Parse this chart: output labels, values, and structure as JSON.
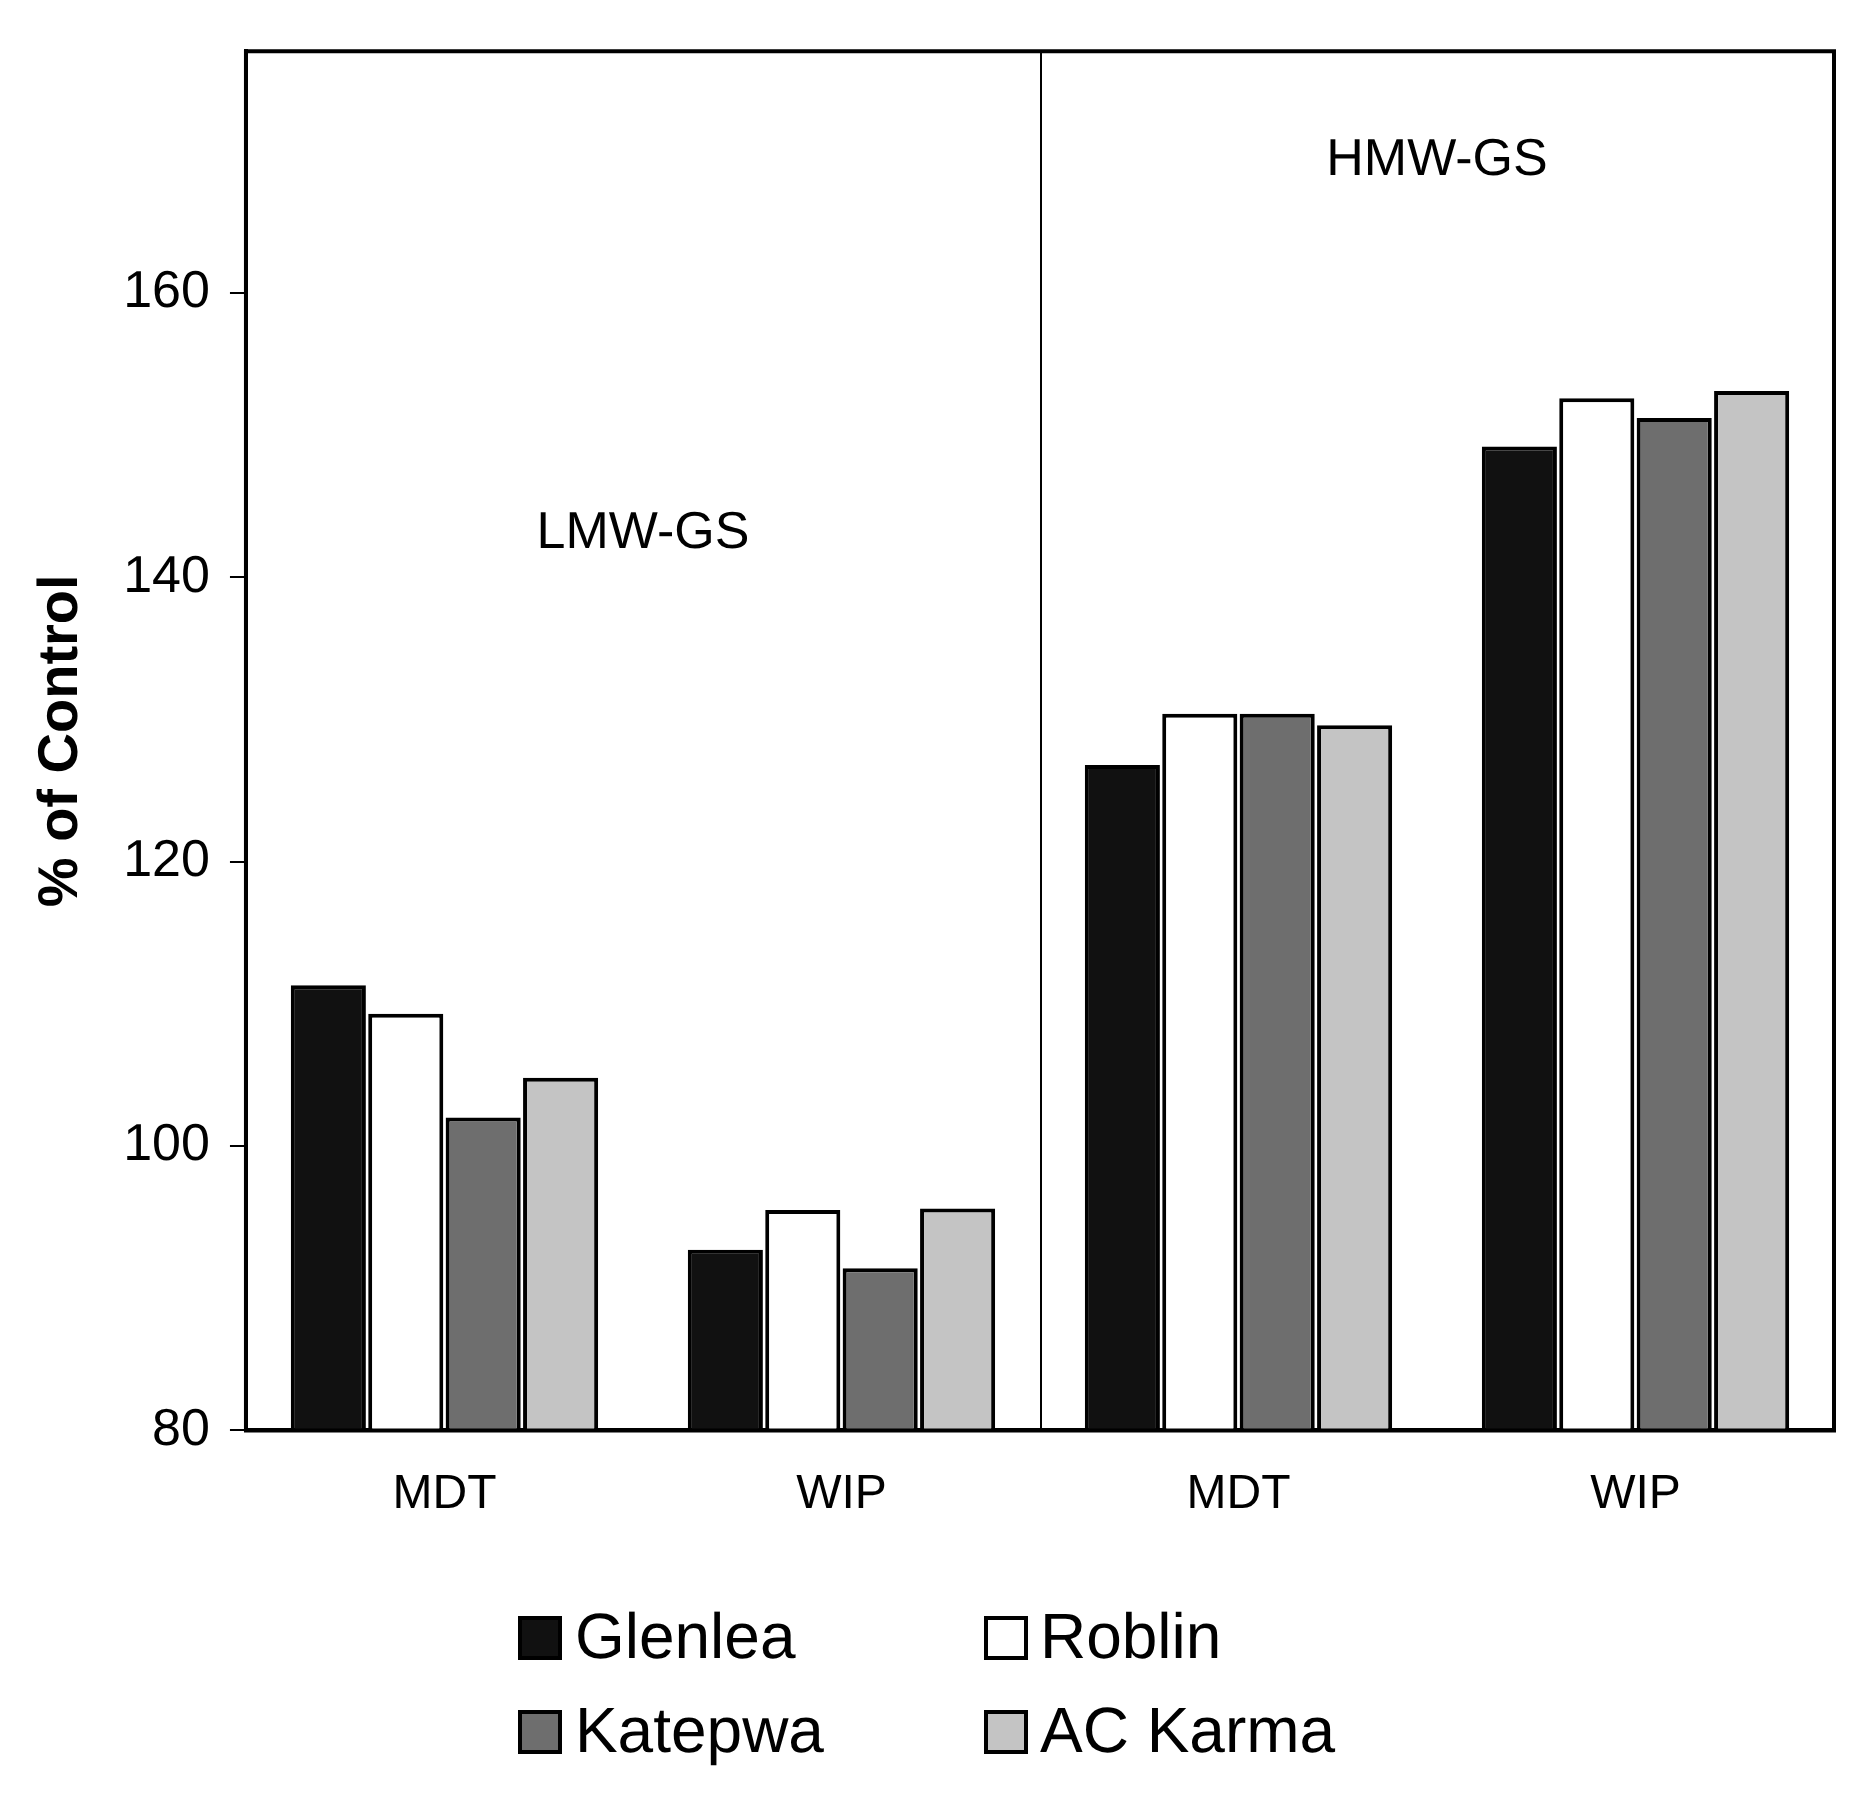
{
  "chart_data": {
    "type": "bar",
    "ylabel": "% of Control",
    "categories": [
      "MDT",
      "WIP",
      "MDT",
      "WIP"
    ],
    "series": [
      {
        "name": "Glenlea",
        "color": "#111111",
        "values": [
          111.3,
          92.7,
          126.8,
          149.2
        ]
      },
      {
        "name": "Roblin",
        "color": "#ffffff",
        "values": [
          109.3,
          95.5,
          130.4,
          152.6
        ]
      },
      {
        "name": "Katepwa",
        "color": "#6e6e6e",
        "values": [
          102.0,
          91.4,
          130.4,
          151.2
        ]
      },
      {
        "name": "AC Karma",
        "color": "#c4c4c4",
        "values": [
          104.8,
          95.6,
          129.6,
          153.1
        ]
      }
    ],
    "annotations": [
      "LMW-GS",
      "HMW-GS"
    ],
    "ylim": [
      80,
      177
    ],
    "yticks": [
      80,
      100,
      120,
      140,
      160
    ],
    "grid": false,
    "legend": "bottom"
  }
}
